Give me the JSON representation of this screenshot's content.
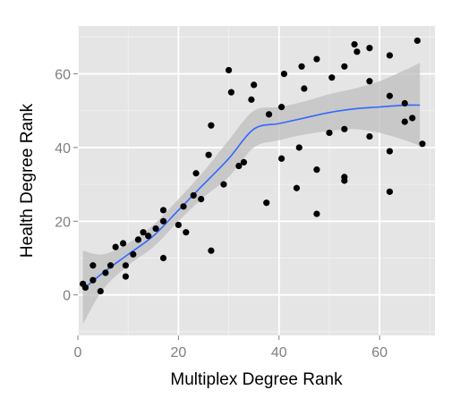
{
  "chart_data": {
    "type": "scatter",
    "title": "",
    "xlabel": "Multiplex Degree Rank",
    "ylabel": "Health Degree Rank",
    "xlim": [
      0,
      71
    ],
    "ylim": [
      -11,
      73
    ],
    "x_ticks": [
      0,
      20,
      40,
      60
    ],
    "y_ticks": [
      0,
      20,
      40,
      60
    ],
    "x_tick_labels": [
      "0",
      "20",
      "40",
      "60"
    ],
    "y_tick_labels": [
      "0",
      "20",
      "40",
      "60"
    ],
    "grid": true,
    "legend": "none",
    "colors": {
      "panel": "#e5e5e5",
      "grid": "#ffffff",
      "points": "#000000",
      "smooth_line": "#3366ff",
      "ribbon": "#bdbdbd",
      "tick_text": "#7f7f7f"
    },
    "points": [
      {
        "x": 1,
        "y": 3
      },
      {
        "x": 1.5,
        "y": 2
      },
      {
        "x": 3,
        "y": 4
      },
      {
        "x": 3,
        "y": 8
      },
      {
        "x": 4.5,
        "y": 1
      },
      {
        "x": 5.5,
        "y": 6
      },
      {
        "x": 6.5,
        "y": 8
      },
      {
        "x": 7.5,
        "y": 13
      },
      {
        "x": 9,
        "y": 14
      },
      {
        "x": 9.5,
        "y": 8
      },
      {
        "x": 9.5,
        "y": 5
      },
      {
        "x": 11,
        "y": 11
      },
      {
        "x": 12,
        "y": 15
      },
      {
        "x": 13,
        "y": 17
      },
      {
        "x": 14,
        "y": 16
      },
      {
        "x": 15.5,
        "y": 18
      },
      {
        "x": 17,
        "y": 20
      },
      {
        "x": 17,
        "y": 23
      },
      {
        "x": 17,
        "y": 10
      },
      {
        "x": 20,
        "y": 19
      },
      {
        "x": 21,
        "y": 24
      },
      {
        "x": 21.5,
        "y": 17
      },
      {
        "x": 23,
        "y": 27
      },
      {
        "x": 23.5,
        "y": 33
      },
      {
        "x": 24.5,
        "y": 26
      },
      {
        "x": 26,
        "y": 38
      },
      {
        "x": 26.5,
        "y": 46
      },
      {
        "x": 26.5,
        "y": 12
      },
      {
        "x": 29,
        "y": 30
      },
      {
        "x": 30,
        "y": 61
      },
      {
        "x": 30.5,
        "y": 55
      },
      {
        "x": 32,
        "y": 35
      },
      {
        "x": 33,
        "y": 36
      },
      {
        "x": 34.5,
        "y": 53
      },
      {
        "x": 35,
        "y": 57
      },
      {
        "x": 37.5,
        "y": 25
      },
      {
        "x": 38,
        "y": 49
      },
      {
        "x": 40.5,
        "y": 51
      },
      {
        "x": 40.5,
        "y": 37
      },
      {
        "x": 41,
        "y": 60
      },
      {
        "x": 43.5,
        "y": 29
      },
      {
        "x": 44,
        "y": 40
      },
      {
        "x": 44.5,
        "y": 62
      },
      {
        "x": 45,
        "y": 56
      },
      {
        "x": 47.5,
        "y": 64
      },
      {
        "x": 47.5,
        "y": 22
      },
      {
        "x": 47.5,
        "y": 34
      },
      {
        "x": 50,
        "y": 44
      },
      {
        "x": 50.5,
        "y": 59
      },
      {
        "x": 53,
        "y": 62
      },
      {
        "x": 53,
        "y": 45
      },
      {
        "x": 53,
        "y": 32
      },
      {
        "x": 53,
        "y": 31
      },
      {
        "x": 55,
        "y": 68
      },
      {
        "x": 55.5,
        "y": 66
      },
      {
        "x": 58,
        "y": 67
      },
      {
        "x": 58,
        "y": 58
      },
      {
        "x": 58,
        "y": 43
      },
      {
        "x": 62,
        "y": 65
      },
      {
        "x": 62,
        "y": 54
      },
      {
        "x": 62,
        "y": 39
      },
      {
        "x": 62,
        "y": 28
      },
      {
        "x": 65,
        "y": 52
      },
      {
        "x": 65,
        "y": 47
      },
      {
        "x": 66.5,
        "y": 48
      },
      {
        "x": 67.5,
        "y": 69
      },
      {
        "x": 68.5,
        "y": 41
      }
    ],
    "smooth": {
      "x": [
        1,
        5,
        10,
        15,
        20,
        25,
        30,
        35,
        40,
        45,
        50,
        55,
        60,
        65,
        68
      ],
      "y": [
        1.5,
        6,
        11,
        16,
        23,
        30,
        37,
        45,
        46.5,
        48,
        49.5,
        50.5,
        51,
        51.5,
        51.5
      ],
      "lower": [
        -8,
        1.5,
        8,
        13,
        20,
        26.5,
        32,
        40,
        42,
        43.5,
        44.5,
        45,
        44,
        42,
        40.5
      ],
      "upper": [
        12,
        11,
        14,
        19,
        26,
        33.5,
        42,
        50,
        51,
        52.5,
        54.5,
        56,
        58,
        61,
        63
      ]
    }
  }
}
